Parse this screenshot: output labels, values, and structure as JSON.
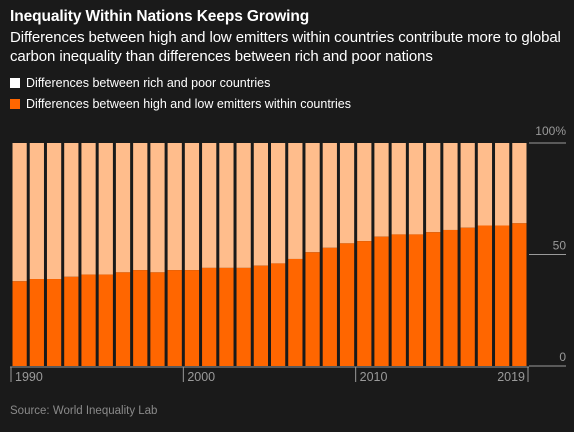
{
  "title": "Inequality Within Nations Keeps Growing",
  "subtitle": "Differences between high and low emitters within countries contribute more to global carbon inequality than differences between rich and poor nations",
  "source": "Source: World Inequality Lab",
  "colors": {
    "background": "#1a1a1a",
    "between": "#ffbd8c",
    "within": "#ff6600",
    "axis": "#9a9a9a"
  },
  "chart_data": {
    "type": "bar",
    "stacked": true,
    "categories": [
      "1990",
      "1991",
      "1992",
      "1993",
      "1994",
      "1995",
      "1996",
      "1997",
      "1998",
      "1999",
      "2000",
      "2001",
      "2002",
      "2003",
      "2004",
      "2005",
      "2006",
      "2007",
      "2008",
      "2009",
      "2010",
      "2011",
      "2012",
      "2013",
      "2014",
      "2015",
      "2016",
      "2017",
      "2018",
      "2019"
    ],
    "series": [
      {
        "name": "Differences between high and low emitters within countries",
        "values": [
          38,
          39,
          39,
          40,
          41,
          41,
          42,
          43,
          42,
          43,
          43,
          44,
          44,
          44,
          45,
          46,
          48,
          51,
          53,
          55,
          56,
          58,
          59,
          59,
          60,
          61,
          62,
          63,
          63,
          64
        ]
      },
      {
        "name": "Differences between rich and poor countries",
        "values": [
          62,
          61,
          61,
          60,
          59,
          59,
          58,
          57,
          58,
          57,
          57,
          56,
          56,
          56,
          55,
          54,
          52,
          49,
          47,
          45,
          44,
          42,
          41,
          41,
          40,
          39,
          38,
          37,
          37,
          36
        ]
      }
    ],
    "ylim": [
      0,
      100
    ],
    "yticks": [
      {
        "value": 0,
        "label": "0"
      },
      {
        "value": 50,
        "label": "50"
      },
      {
        "value": 100,
        "label": "100%"
      }
    ],
    "xticks": [
      "1990",
      "2000",
      "2010",
      "2019"
    ],
    "legend_position": "top-left",
    "grid": true
  }
}
